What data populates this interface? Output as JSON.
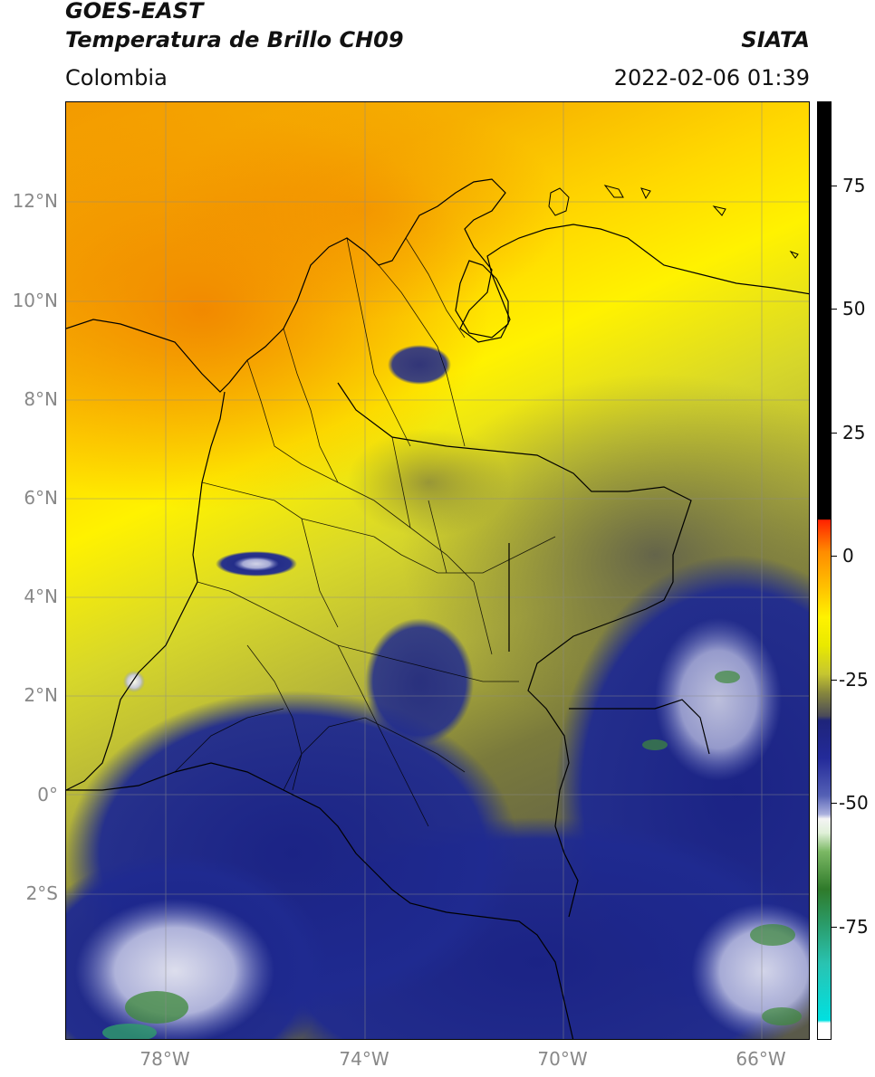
{
  "header": {
    "title_line1": "GOES-EAST",
    "title_line2": "Temperatura de Brillo CH09",
    "brand": "SIATA",
    "region": "Colombia",
    "datetime": "2022-02-06 01:39"
  },
  "axes": {
    "lat_labels": [
      "12°N",
      "10°N",
      "8°N",
      "6°N",
      "4°N",
      "2°N",
      "0°",
      "2°S"
    ],
    "lon_labels": [
      "78°W",
      "74°W",
      "70°W",
      "66°W"
    ]
  },
  "colorbar": {
    "tick_labels": [
      "75",
      "50",
      "25",
      "0",
      "-25",
      "-50",
      "-75"
    ],
    "colors": [
      "#000000",
      "#ff2200",
      "#ff8c00",
      "#fff200",
      "#88883c",
      "#232a99",
      "#f4f4f4",
      "#2f7a2a",
      "#00e0e0",
      "#ffffff"
    ]
  },
  "legend_colors": {
    "warm_orange": "#f39a00",
    "yellow": "#fff000",
    "olive": "#8c8c3a",
    "deep_blue": "#1e2a8c",
    "white_cloud": "#f2f2f6",
    "green": "#3e8a3a"
  }
}
